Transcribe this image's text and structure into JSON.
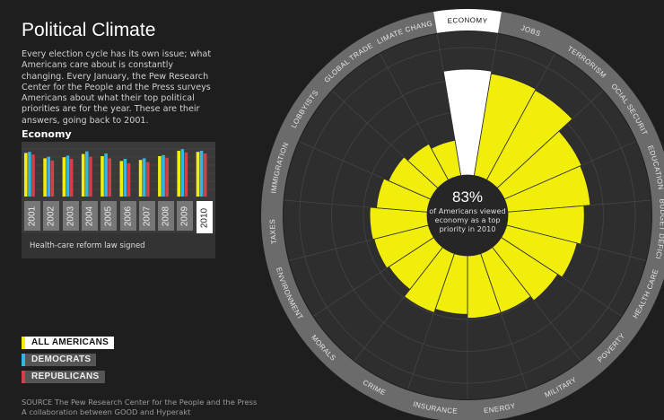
{
  "title": "Political Climate",
  "intro": "Every election cycle has its own issue; what Americans care about is constantly changing. Every January, the Pew Research Center for the People and the Press surveys Americans about what their top political priorities are for the year. These are their answers, going back to 2001.",
  "subhead": "Economy",
  "event_label": "Health-care reform law signed",
  "legend": {
    "all": "ALL AMERICANS",
    "dem": "DEMOCRATS",
    "rep": "REPUBLICANS"
  },
  "colors": {
    "all": "#f2ee0c",
    "dem": "#2fb7e6",
    "rep": "#d63e4a",
    "highlight": "#ffffff"
  },
  "source": {
    "line1": "SOURCE The Pew Research Center for the People and the Press",
    "line2": "A collaboration between GOOD and Hyperakt"
  },
  "center": {
    "percent": "83%",
    "caption": "of Americans viewed economy as a top priority in 2010"
  },
  "chart_data": [
    {
      "type": "bar",
      "title": "Economy",
      "categories": [
        "2001",
        "2002",
        "2003",
        "2004",
        "2005",
        "2006",
        "2007",
        "2008",
        "2009",
        "2010"
      ],
      "selected": "2010",
      "ylim": [
        0,
        100
      ],
      "series": [
        {
          "name": "ALL AMERICANS",
          "values": [
            81,
            71,
            73,
            79,
            75,
            66,
            68,
            75,
            85,
            83
          ]
        },
        {
          "name": "DEMOCRATS",
          "values": [
            83,
            74,
            76,
            84,
            80,
            70,
            71,
            77,
            88,
            85
          ]
        },
        {
          "name": "REPUBLICANS",
          "values": [
            78,
            67,
            70,
            74,
            71,
            62,
            64,
            72,
            82,
            80
          ]
        }
      ]
    },
    {
      "type": "radial-bar",
      "year": "2010",
      "selected_issue": "ECONOMY",
      "categories": [
        "ECONOMY",
        "JOBS",
        "TERRORISM",
        "SOCIAL SECURITY",
        "EDUCATION",
        "BUDGET DEFICIT",
        "HEALTH CARE",
        "POVERTY",
        "MILITARY",
        "ENERGY",
        "INSURANCE",
        "CRIME",
        "MORALS",
        "ENVIRONMENT",
        "TAXES",
        "IMMIGRATION",
        "LOBBYISTS",
        "GLOBAL TRADE",
        "CLIMATE CHANGE"
      ],
      "values": [
        83,
        81,
        80,
        66,
        65,
        60,
        57,
        53,
        49,
        49,
        46,
        49,
        42,
        44,
        45,
        40,
        36,
        32,
        28
      ],
      "ylim": [
        0,
        100
      ]
    }
  ]
}
